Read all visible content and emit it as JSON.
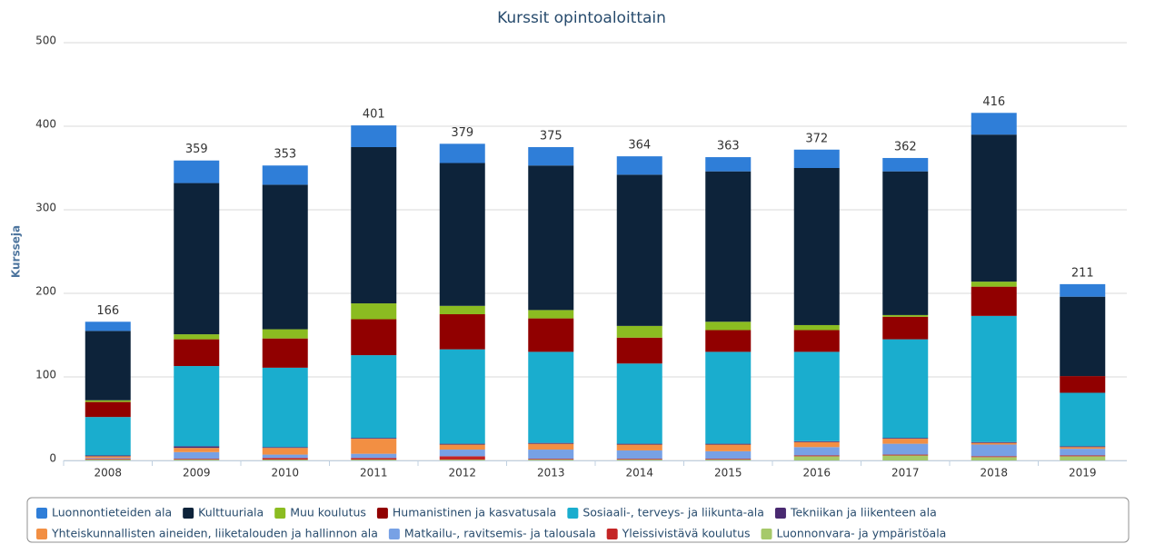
{
  "chart_data": {
    "type": "stacked_bar",
    "title": "Kurssit opintoaloittain",
    "y_label": "Kursseja",
    "categories": [
      "2008",
      "2009",
      "2010",
      "2011",
      "2012",
      "2013",
      "2014",
      "2015",
      "2016",
      "2017",
      "2018",
      "2019"
    ],
    "totals": [
      166,
      359,
      353,
      401,
      379,
      375,
      364,
      363,
      372,
      362,
      416,
      211
    ],
    "ylim": [
      0,
      500
    ],
    "yticks": [
      0,
      100,
      200,
      300,
      400,
      500
    ],
    "grid": true,
    "legend": "bottom",
    "series": [
      {
        "name": "Luonnontieteiden ala",
        "color": "#2f7ed8",
        "values": [
          11,
          27,
          23,
          26,
          23,
          22,
          22,
          17,
          22,
          16,
          26,
          15
        ]
      },
      {
        "name": "Kulttuuriala",
        "color": "#0d233a",
        "values": [
          83,
          181,
          173,
          187,
          171,
          173,
          181,
          180,
          188,
          172,
          176,
          95
        ]
      },
      {
        "name": "Muu koulutus",
        "color": "#8bbc21",
        "values": [
          2,
          6,
          11,
          19,
          10,
          10,
          14,
          10,
          6,
          2,
          6,
          0
        ]
      },
      {
        "name": "Humanistinen ja kasvatusala",
        "color": "#910000",
        "values": [
          18,
          32,
          35,
          43,
          42,
          40,
          31,
          26,
          26,
          27,
          35,
          20
        ]
      },
      {
        "name": "Sosiaali-, terveys- ja liikunta-ala",
        "color": "#1aadce",
        "values": [
          46,
          96,
          95,
          99,
          113,
          109,
          96,
          110,
          107,
          118,
          151,
          64
        ]
      },
      {
        "name": "Tekniikan ja liikenteen ala",
        "color": "#492970",
        "values": [
          1,
          2,
          1,
          1,
          1,
          1,
          1,
          1,
          1,
          1,
          1,
          1
        ]
      },
      {
        "name": "Yhteiskunnallisten aineiden, liiketalouden ja hallinnon ala",
        "color": "#f28f43",
        "values": [
          2,
          5,
          8,
          18,
          6,
          7,
          7,
          8,
          6,
          6,
          2,
          2
        ]
      },
      {
        "name": "Matkailu-, ravitsemis- ja talousala",
        "color": "#77a1e5",
        "values": [
          1,
          8,
          4,
          5,
          8,
          11,
          10,
          9,
          10,
          13,
          14,
          8
        ]
      },
      {
        "name": "Yleissivistävä koulutus",
        "color": "#c42525",
        "values": [
          1,
          1,
          2,
          2,
          4,
          1,
          1,
          1,
          1,
          1,
          1,
          1
        ]
      },
      {
        "name": "Luonnonvara- ja ympäristöala",
        "color": "#a6c96a",
        "values": [
          1,
          1,
          1,
          1,
          1,
          1,
          1,
          1,
          5,
          6,
          4,
          5
        ]
      }
    ]
  }
}
